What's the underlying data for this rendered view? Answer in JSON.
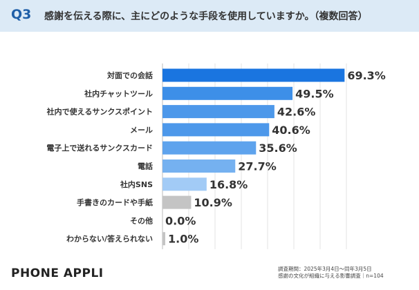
{
  "header": {
    "question_number": "Q3",
    "question_text": "感謝を伝える際に、主にどのような手段を使用していますか。（複数回答）"
  },
  "chart_data": {
    "type": "bar",
    "orientation": "horizontal",
    "categories": [
      "対面での会話",
      "社内チャットツール",
      "社内で使えるサンクスポイント",
      "メール",
      "電子上で送れるサンクスカード",
      "電話",
      "社内SNS",
      "手書きのカードや手紙",
      "その他",
      "わからない/答えられない"
    ],
    "values": [
      69.3,
      49.5,
      42.6,
      40.6,
      35.6,
      27.7,
      16.8,
      10.9,
      0.0,
      1.0
    ],
    "value_labels": [
      "69.3%",
      "49.5%",
      "42.6%",
      "40.6%",
      "35.6%",
      "27.7%",
      "16.8%",
      "10.9%",
      "0.0%",
      "1.0%"
    ],
    "unit": "%",
    "xlim": [
      0,
      70
    ],
    "grid": true,
    "legend": "none",
    "bar_colors": [
      "#1a75e0",
      "#3d8fe8",
      "#4d98ea",
      "#4d98ea",
      "#5ea3ed",
      "#75b1f0",
      "#a2cbf6",
      "#c4c4c4",
      "#c4c4c4",
      "#c4c4c4"
    ]
  },
  "footer": {
    "brand": "PHONE APPLI",
    "survey_period": "調査期間：2025年3月4日～同年3月5日",
    "survey_title": "感謝の文化が組織に与える影響調査｜n=104"
  }
}
